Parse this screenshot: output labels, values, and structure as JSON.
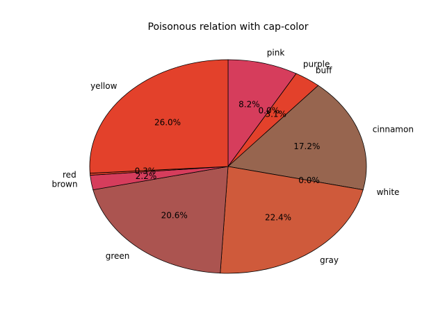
{
  "chart_data": {
    "type": "pie",
    "title": "Poisonous relation with cap-color",
    "start_angle_deg": 90,
    "direction": "clockwise",
    "slices": [
      {
        "label": "pink",
        "value": 8.2,
        "pct_label": "8.2%",
        "color": "#d63d5c"
      },
      {
        "label": "purple",
        "value": 0.0,
        "pct_label": "0.0%",
        "color": "#e3412b"
      },
      {
        "label": "buff",
        "value": 3.1,
        "pct_label": "3.1%",
        "color": "#e3412b"
      },
      {
        "label": "cinnamon",
        "value": 17.2,
        "pct_label": "17.2%",
        "color": "#97654f"
      },
      {
        "label": "white",
        "value": 0.0,
        "pct_label": "0.0%",
        "color": "#c65a3e"
      },
      {
        "label": "gray",
        "value": 22.4,
        "pct_label": "22.4%",
        "color": "#cf5a3b"
      },
      {
        "label": "green",
        "value": 20.6,
        "pct_label": "20.6%",
        "color": "#ab5450"
      },
      {
        "label": "brown",
        "value": 2.2,
        "pct_label": "2.2%",
        "color": "#d63d5c"
      },
      {
        "label": "red",
        "value": 0.3,
        "pct_label": "0.3%",
        "color": "#e3412b"
      },
      {
        "label": "yellow",
        "value": 26.0,
        "pct_label": "26.0%",
        "color": "#e3412b"
      }
    ]
  }
}
